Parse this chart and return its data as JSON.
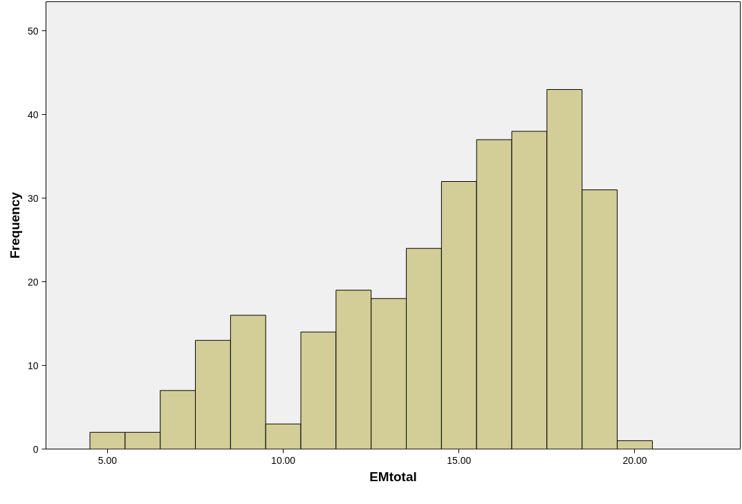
{
  "chart_data": {
    "type": "histogram",
    "xlabel": "EMtotal",
    "ylabel": "Frequency",
    "color": "#d3ce97",
    "bins": [
      4.5,
      5.5,
      6.5,
      7.5,
      8.5,
      9.5,
      10.5,
      11.5,
      12.5,
      13.5,
      14.5,
      15.5,
      16.5,
      17.5,
      18.5,
      19.5,
      20.5
    ],
    "values": [
      2,
      2,
      7,
      13,
      16,
      3,
      14,
      19,
      18,
      24,
      32,
      37,
      38,
      43,
      31,
      1
    ],
    "xlim": [
      3.25,
      23.0
    ],
    "ylim": [
      0,
      53.5
    ],
    "xticks": [
      {
        "value": 5,
        "label": "5.00"
      },
      {
        "value": 10,
        "label": "10.00"
      },
      {
        "value": 15,
        "label": "15.00"
      },
      {
        "value": 20,
        "label": "20.00"
      }
    ],
    "yticks": [
      0,
      10,
      20,
      30,
      40,
      50
    ],
    "grid": false
  }
}
